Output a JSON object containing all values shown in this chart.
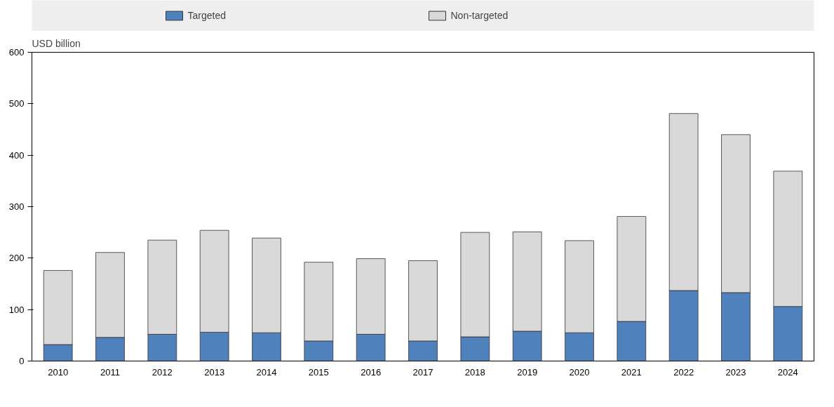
{
  "chart_data": {
    "type": "bar",
    "stacked": true,
    "ylabel": "USD billion",
    "categories": [
      "2010",
      "2011",
      "2012",
      "2013",
      "2014",
      "2015",
      "2016",
      "2017",
      "2018",
      "2019",
      "2020",
      "2021",
      "2022",
      "2023",
      "2024"
    ],
    "series": [
      {
        "name": "Targeted",
        "color": "#4f81bd",
        "values": [
          32,
          46,
          52,
          56,
          55,
          39,
          52,
          39,
          47,
          58,
          55,
          77,
          137,
          133,
          106
        ]
      },
      {
        "name": "Non-targeted",
        "color": "#d9d9d9",
        "values": [
          144,
          165,
          183,
          198,
          184,
          153,
          147,
          156,
          203,
          193,
          179,
          204,
          344,
          307,
          263
        ]
      }
    ],
    "ylim": [
      0,
      600
    ],
    "yticks": [
      0,
      100,
      200,
      300,
      400,
      500,
      600
    ],
    "grid": false,
    "legend": "top"
  }
}
